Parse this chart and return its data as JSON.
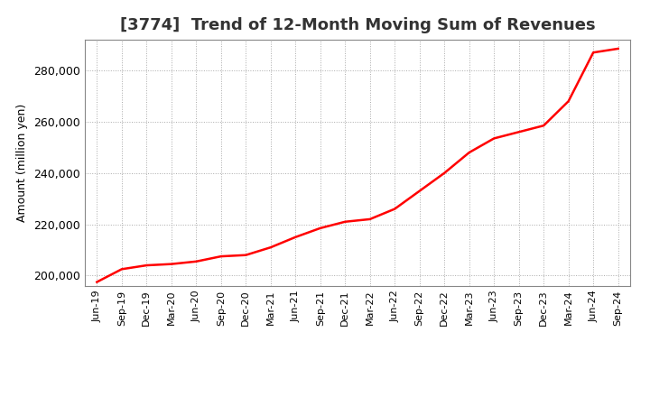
{
  "title": "[3774]  Trend of 12-Month Moving Sum of Revenues",
  "ylabel": "Amount (million yen)",
  "line_color": "#ff0000",
  "line_width": 1.8,
  "background_color": "#ffffff",
  "plot_background_color": "#ffffff",
  "grid_color": "#aaaaaa",
  "ylim": [
    196000,
    292000
  ],
  "yticks": [
    200000,
    220000,
    240000,
    260000,
    280000
  ],
  "x_labels": [
    "Jun-19",
    "Sep-19",
    "Dec-19",
    "Mar-20",
    "Jun-20",
    "Sep-20",
    "Dec-20",
    "Mar-21",
    "Jun-21",
    "Sep-21",
    "Dec-21",
    "Mar-22",
    "Jun-22",
    "Sep-22",
    "Dec-22",
    "Mar-23",
    "Jun-23",
    "Sep-23",
    "Dec-23",
    "Mar-24",
    "Jun-24",
    "Sep-24"
  ],
  "values": [
    197500,
    202500,
    204000,
    204500,
    205500,
    207500,
    208000,
    211000,
    215000,
    218500,
    221000,
    222000,
    226000,
    233000,
    240000,
    248000,
    253500,
    256000,
    258500,
    268000,
    287000,
    288500
  ],
  "title_fontsize": 13,
  "ylabel_fontsize": 9,
  "xtick_fontsize": 8,
  "ytick_fontsize": 9
}
